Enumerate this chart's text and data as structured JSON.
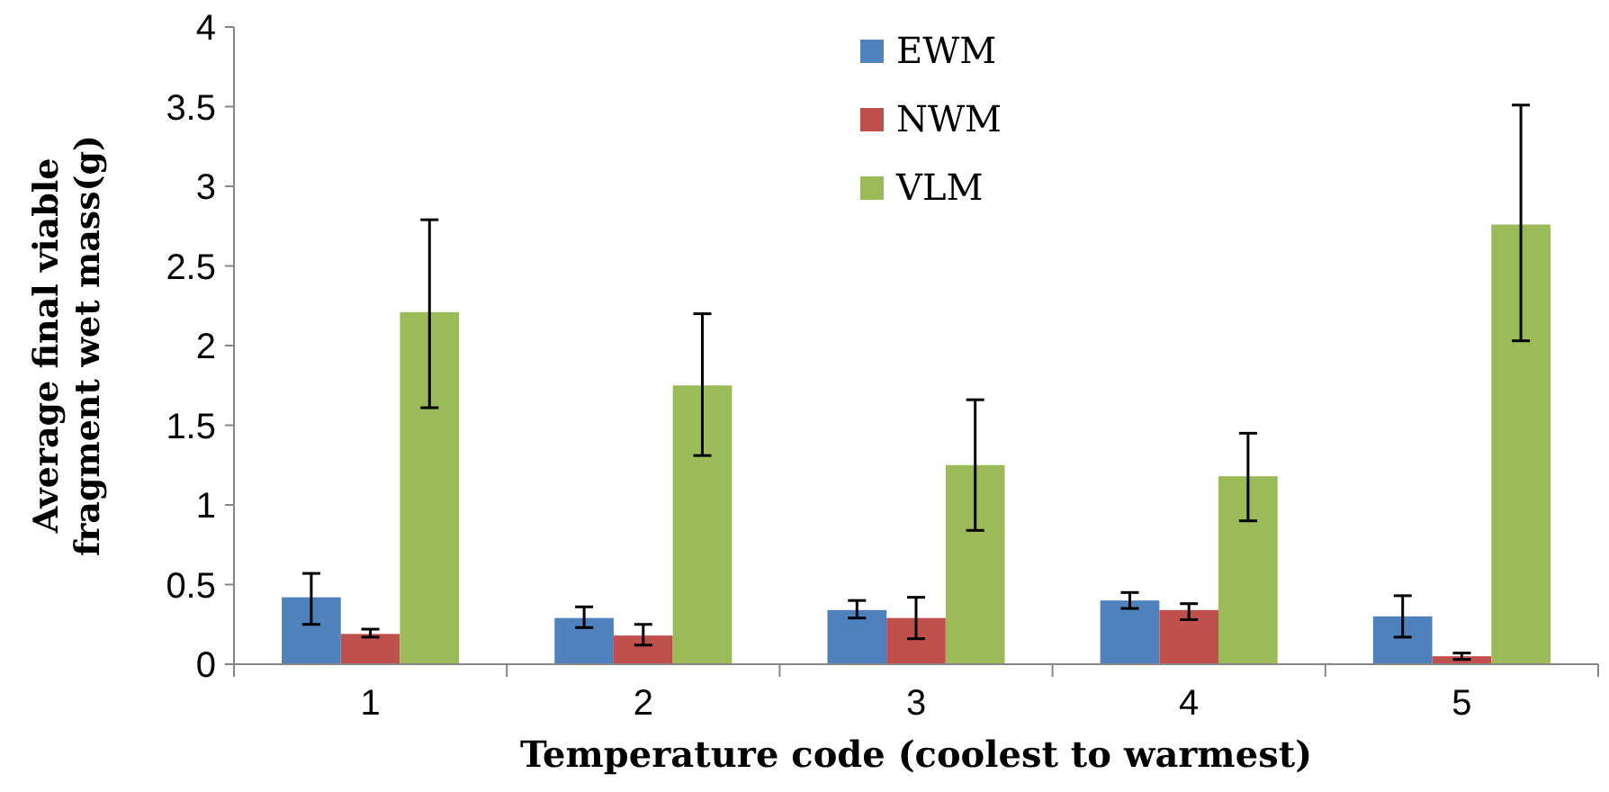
{
  "chart_data": {
    "type": "bar",
    "xlabel": "Temperature code (coolest to warmest)",
    "ylabel": "Average final viable fragment wet mass(g)",
    "categories": [
      "1",
      "2",
      "3",
      "4",
      "5"
    ],
    "series": [
      {
        "name": "EWM",
        "color": "#4f81bd",
        "values": [
          0.42,
          0.29,
          0.34,
          0.4,
          0.3
        ],
        "errors": [
          [
            0.25,
            0.57
          ],
          [
            0.23,
            0.36
          ],
          [
            0.29,
            0.4
          ],
          [
            0.35,
            0.45
          ],
          [
            0.17,
            0.43
          ]
        ]
      },
      {
        "name": "NWM",
        "color": "#c0504d",
        "values": [
          0.19,
          0.18,
          0.29,
          0.34,
          0.05
        ],
        "errors": [
          [
            0.17,
            0.22
          ],
          [
            0.12,
            0.25
          ],
          [
            0.16,
            0.42
          ],
          [
            0.28,
            0.38
          ],
          [
            0.03,
            0.07
          ]
        ]
      },
      {
        "name": "VLM",
        "color": "#9bbb59",
        "values": [
          2.21,
          1.75,
          1.25,
          1.18,
          2.76
        ],
        "errors": [
          [
            1.61,
            2.79
          ],
          [
            1.31,
            2.2
          ],
          [
            0.84,
            1.66
          ],
          [
            0.9,
            1.45
          ],
          [
            2.03,
            3.51
          ]
        ]
      }
    ],
    "ylim": [
      0,
      4
    ],
    "yticks": [
      0,
      0.5,
      1,
      1.5,
      2,
      2.5,
      3,
      3.5,
      4
    ],
    "grid": false,
    "legend": "top"
  }
}
